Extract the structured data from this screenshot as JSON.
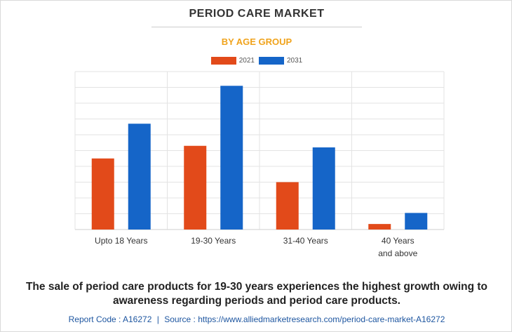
{
  "header": {
    "title": "PERIOD CARE MARKET",
    "subtitle": "BY AGE GROUP"
  },
  "colors": {
    "series_2021": "#e24a1a",
    "series_2031": "#1565c8",
    "subtitle": "#f0a31c",
    "footer": "#1e56a0"
  },
  "chart_data": {
    "type": "bar",
    "categories": [
      "Upto 18 Years",
      "19-30 Years",
      "31-40 Years",
      "40 Years\nand above"
    ],
    "series": [
      {
        "name": "2021",
        "values": [
          45,
          53,
          30,
          3.5
        ]
      },
      {
        "name": "2031",
        "values": [
          67,
          91,
          52,
          10.5
        ]
      }
    ],
    "ylim": [
      0,
      100
    ],
    "y_gridlines": 10,
    "grid": true,
    "legend": "top-center",
    "title": "",
    "xlabel": "",
    "ylabel": ""
  },
  "caption": "The sale of period care products for 19-30 years experiences the highest growth owing to awareness regarding periods and period care products.",
  "footer": {
    "report_code": "Report Code : A16272",
    "separator": "|",
    "source": "Source : https://www.alliedmarketresearch.com/period-care-market-A16272"
  }
}
